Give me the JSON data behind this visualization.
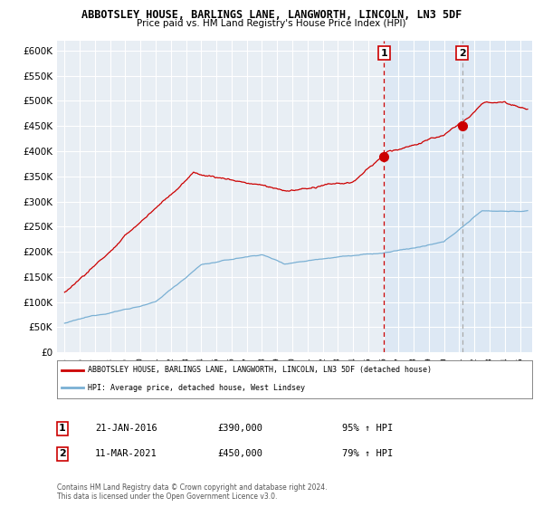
{
  "title1": "ABBOTSLEY HOUSE, BARLINGS LANE, LANGWORTH, LINCOLN, LN3 5DF",
  "title2": "Price paid vs. HM Land Registry's House Price Index (HPI)",
  "ylim": [
    0,
    620000
  ],
  "yticks": [
    0,
    50000,
    100000,
    150000,
    200000,
    250000,
    300000,
    350000,
    400000,
    450000,
    500000,
    550000,
    600000
  ],
  "ytick_labels": [
    "£0",
    "£50K",
    "£100K",
    "£150K",
    "£200K",
    "£250K",
    "£300K",
    "£350K",
    "£400K",
    "£450K",
    "£500K",
    "£550K",
    "£600K"
  ],
  "sale1_date": 2016.05,
  "sale1_price": 390000,
  "sale1_label": "1",
  "sale2_date": 2021.18,
  "sale2_price": 450000,
  "sale2_label": "2",
  "line1_color": "#cc0000",
  "line2_color": "#7ab0d4",
  "vline1_color": "#cc0000",
  "vline2_color": "#aaaaaa",
  "shade_color": "#dce8f5",
  "background_color": "#e8eef4",
  "grid_color": "#ffffff",
  "box_border_color": "#cc0000",
  "legend_label1": "ABBOTSLEY HOUSE, BARLINGS LANE, LANGWORTH, LINCOLN, LN3 5DF (detached house)",
  "legend_label2": "HPI: Average price, detached house, West Lindsey",
  "annotation1_date": "21-JAN-2016",
  "annotation1_price": "£390,000",
  "annotation1_hpi": "95% ↑ HPI",
  "annotation2_date": "11-MAR-2021",
  "annotation2_price": "£450,000",
  "annotation2_hpi": "79% ↑ HPI",
  "footer": "Contains HM Land Registry data © Crown copyright and database right 2024.\nThis data is licensed under the Open Government Licence v3.0."
}
